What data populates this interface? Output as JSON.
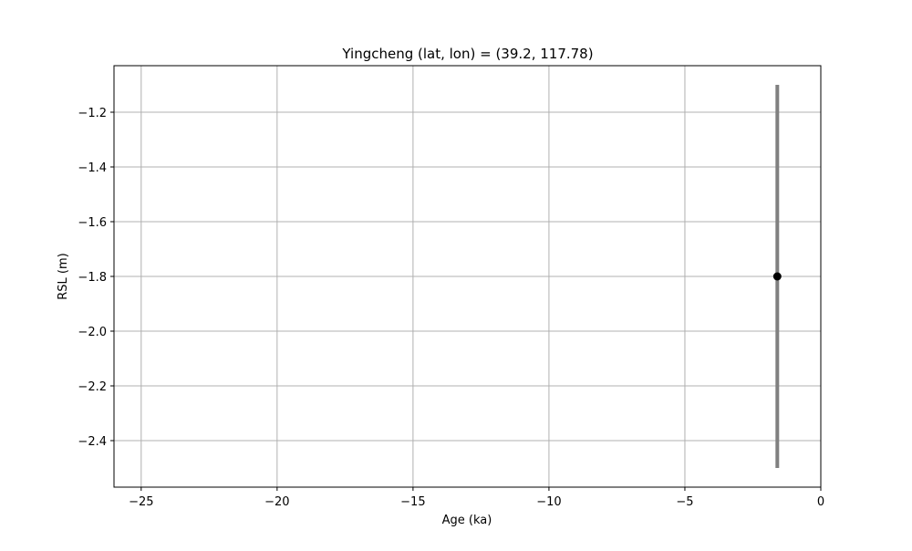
{
  "chart_data": {
    "type": "scatter",
    "title": "Yingcheng (lat, lon) = (39.2, 117.78)",
    "xlabel": "Age (ka)",
    "ylabel": "RSL (m)",
    "xlim": [
      -26,
      0
    ],
    "ylim": [
      -2.57,
      -1.03
    ],
    "xticks": [
      -25,
      -20,
      -15,
      -10,
      -5,
      0
    ],
    "xtick_labels": [
      "−25",
      "−20",
      "−15",
      "−10",
      "−5",
      "0"
    ],
    "yticks": [
      -2.4,
      -2.2,
      -2.0,
      -1.8,
      -1.6,
      -1.4,
      -1.2
    ],
    "ytick_labels": [
      "−2.4",
      "−2.2",
      "−2.0",
      "−1.8",
      "−1.6",
      "−1.4",
      "−1.2"
    ],
    "grid": true,
    "points": [
      {
        "x": -1.6,
        "y": -1.8,
        "y_err_low": -2.5,
        "y_err_high": -1.1
      }
    ],
    "colors": {
      "marker": "#000000",
      "errorbar": "#808080",
      "grid": "#b0b0b0",
      "axes": "#000000"
    }
  }
}
